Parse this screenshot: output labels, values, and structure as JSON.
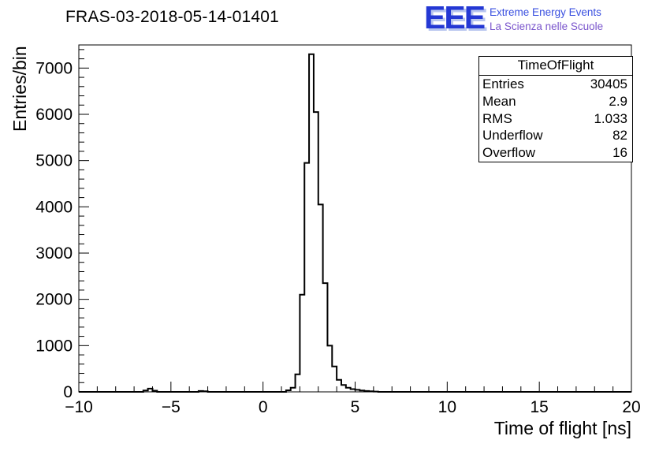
{
  "header": {
    "title": "FRAS-03-2018-05-14-01401"
  },
  "logo": {
    "text": "EEE",
    "tagline1": "Extreme Energy Events",
    "tagline2": "La Scienza nelle Scuole",
    "color": "#2438d4",
    "shadow_color": "#b8c6ef",
    "tagline1_color": "#3a50e0",
    "tagline2_color": "#7a55cc"
  },
  "stats_box": {
    "title": "TimeOfFlight",
    "rows": [
      {
        "label": "Entries",
        "value": "30405"
      },
      {
        "label": "Mean",
        "value": "2.9"
      },
      {
        "label": "RMS",
        "value": "1.033"
      },
      {
        "label": "Underflow",
        "value": "82"
      },
      {
        "label": "Overflow",
        "value": "16"
      }
    ]
  },
  "chart_data": {
    "type": "bar",
    "title": "FRAS-03-2018-05-14-01401",
    "xlabel": "Time of flight [ns]",
    "ylabel": "Entries/bin",
    "xlim": [
      -10,
      20
    ],
    "ylim": [
      0,
      7500
    ],
    "xticks": [
      -10,
      -5,
      0,
      5,
      10,
      15,
      20
    ],
    "yticks": [
      0,
      1000,
      2000,
      3000,
      4000,
      5000,
      6000,
      7000
    ],
    "x_minor_step": 1,
    "y_minor_step": 200,
    "x_start": -10,
    "bin_width": 0.25,
    "line_color": "#000000",
    "grid": false,
    "legend": "none",
    "counts": [
      0,
      0,
      0,
      0,
      0,
      0,
      0,
      0,
      0,
      0,
      0,
      0,
      0,
      0,
      30,
      70,
      25,
      0,
      0,
      0,
      0,
      0,
      0,
      0,
      0,
      0,
      20,
      12,
      0,
      0,
      0,
      0,
      0,
      0,
      0,
      0,
      0,
      0,
      0,
      0,
      0,
      0,
      0,
      0,
      0,
      35,
      90,
      380,
      2100,
      4950,
      7300,
      6050,
      4050,
      2350,
      1000,
      550,
      260,
      150,
      90,
      60,
      45,
      30,
      20,
      12,
      6,
      0,
      0,
      0,
      0,
      0,
      0,
      0,
      0,
      0,
      0,
      0,
      0,
      0,
      0,
      0,
      0,
      0,
      0,
      0,
      0,
      0,
      0,
      0,
      0,
      0,
      0,
      0,
      0,
      0,
      0,
      0,
      0,
      0,
      0,
      0,
      0,
      0,
      0,
      0,
      0,
      0,
      0,
      0,
      0,
      0,
      0,
      0,
      0,
      0,
      0,
      0,
      0,
      0,
      0,
      0
    ]
  }
}
